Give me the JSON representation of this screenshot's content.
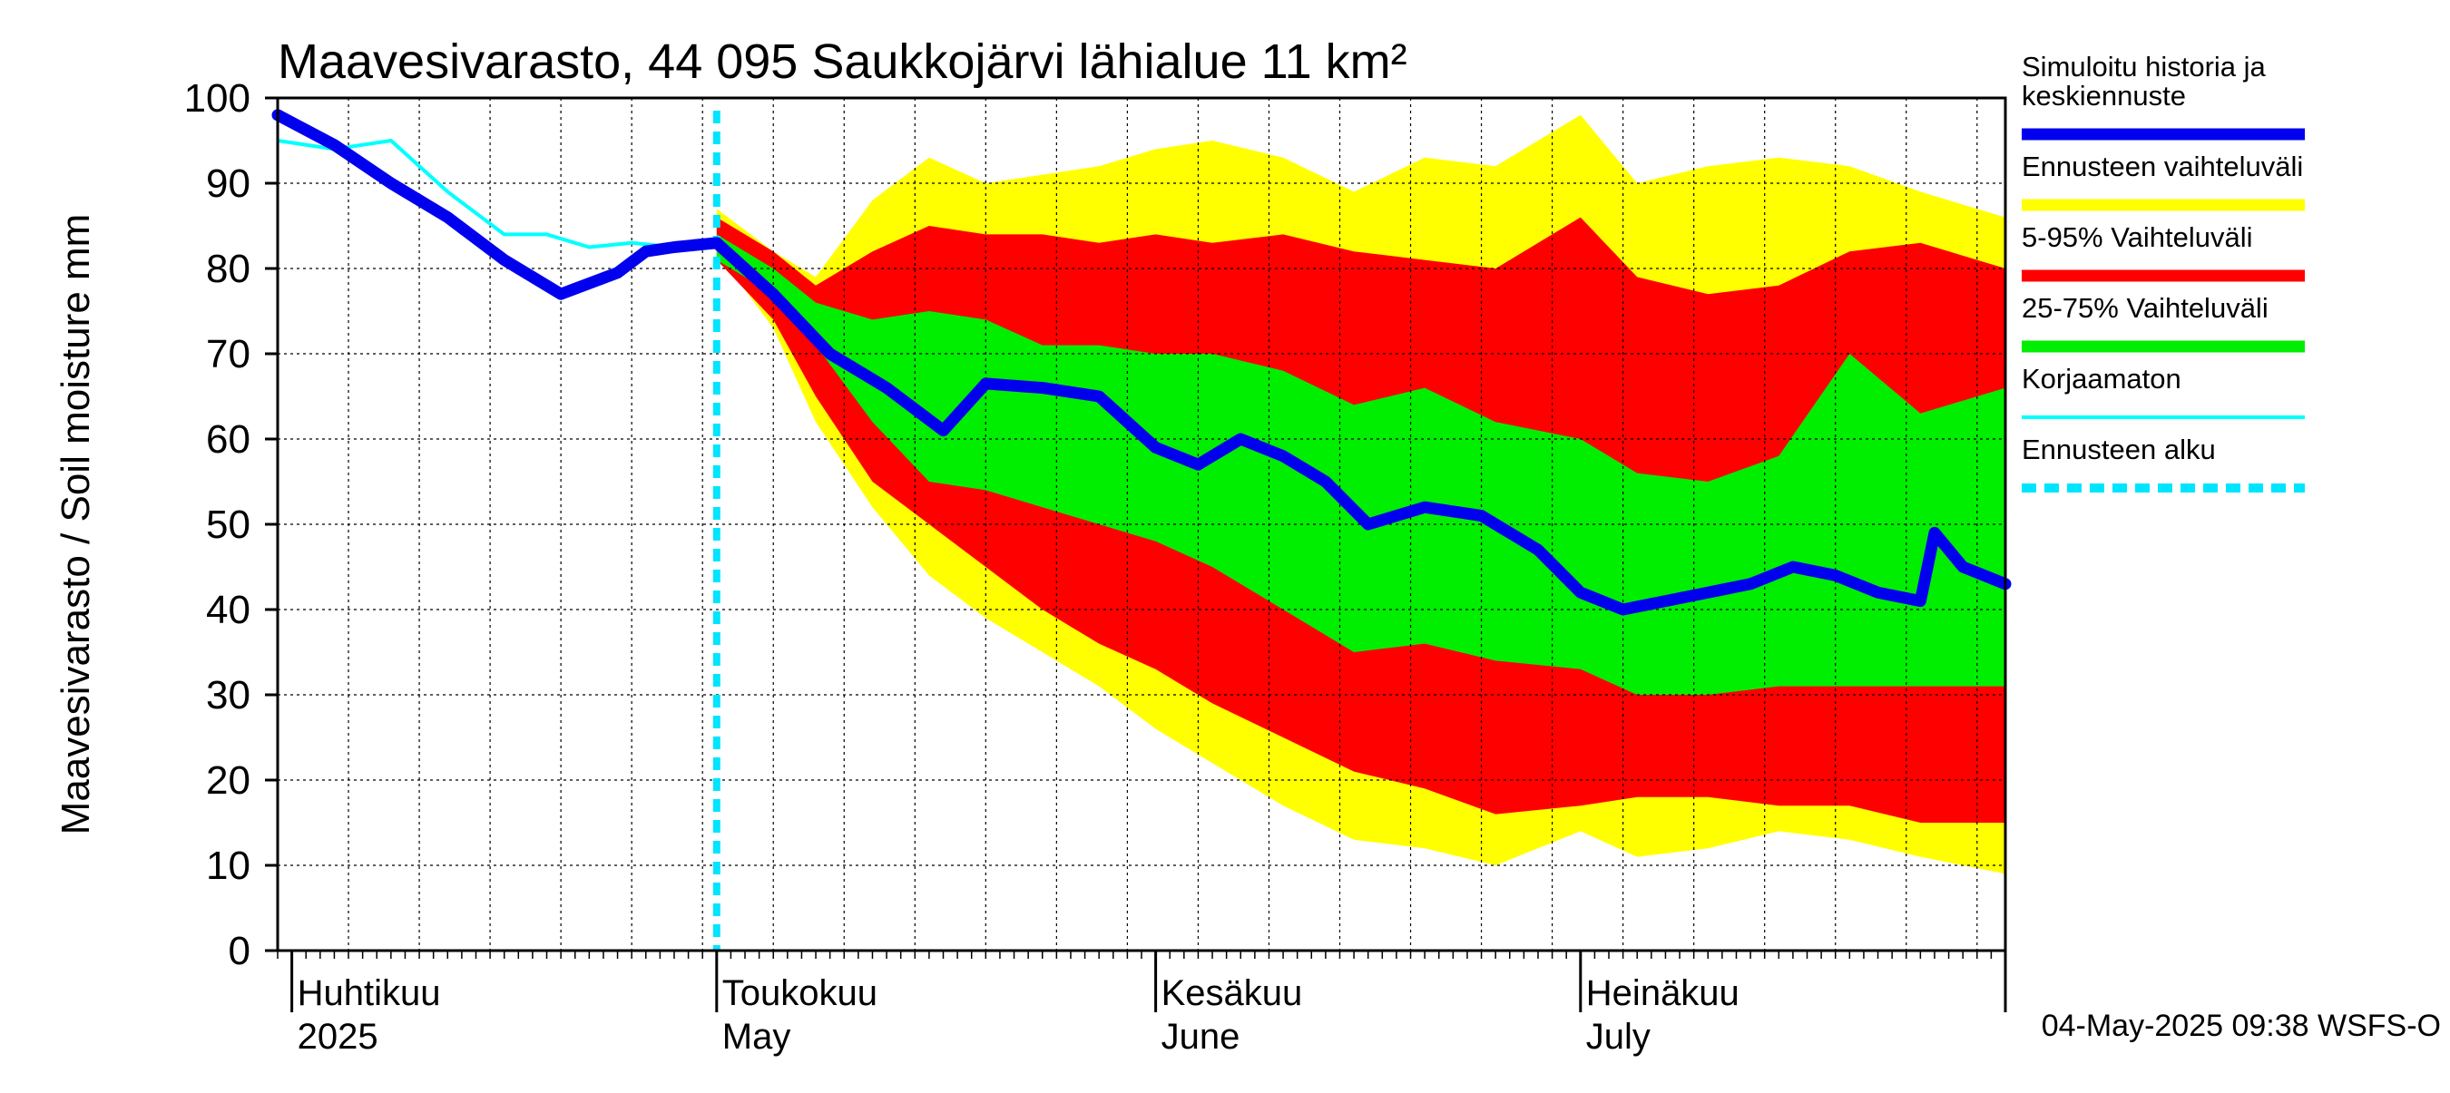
{
  "chart_data": {
    "type": "area",
    "title": "Maavesivarasto, 44 095 Saukkojärvi lähialue 11 km²",
    "ylabel": "Maavesivarasto / Soil moisture   mm",
    "xlabel": "",
    "ylim": [
      0,
      100
    ],
    "yticks": [
      0,
      10,
      20,
      30,
      40,
      50,
      60,
      70,
      80,
      90,
      100
    ],
    "xlim": [
      "2025-03-31",
      "2025-07-31"
    ],
    "grid": true,
    "legend_position": "right",
    "x_month_labels": [
      {
        "date": "2025-04-01",
        "fi": "Huhtikuu",
        "en": "2025"
      },
      {
        "date": "2025-05-01",
        "fi": "Toukokuu",
        "en": "May"
      },
      {
        "date": "2025-06-01",
        "fi": "Kesäkuu",
        "en": "June"
      },
      {
        "date": "2025-07-01",
        "fi": "Heinäkuu",
        "en": "July"
      }
    ],
    "forecast_start": "2025-05-01",
    "timestamp": "04-May-2025 09:38 WSFS-O",
    "legend": [
      {
        "label": "Simuloitu historia ja keskiennuste",
        "color": "#0000ee"
      },
      {
        "label": "Ennusteen vaihteluväli",
        "color": "#ffff00"
      },
      {
        "label": "5-95% Vaihteluväli",
        "color": "#ff0000"
      },
      {
        "label": "25-75% Vaihteluväli",
        "color": "#00ee00"
      },
      {
        "label": "Korjaamaton",
        "color": "#00ffff"
      },
      {
        "label": "Ennusteen alku",
        "color": "#00e5ff"
      }
    ],
    "colors": {
      "history": "#0000ee",
      "range_full": "#ffff00",
      "range_5_95": "#ff0000",
      "range_25_75": "#00ee00",
      "uncorrected": "#00ffff",
      "forecast_start": "#00e5ff"
    },
    "series": [
      {
        "name": "Simuloitu historia ja keskiennuste",
        "x": [
          "2025-03-31",
          "2025-04-04",
          "2025-04-08",
          "2025-04-12",
          "2025-04-16",
          "2025-04-20",
          "2025-04-24",
          "2025-04-26",
          "2025-04-28",
          "2025-05-01",
          "2025-05-05",
          "2025-05-09",
          "2025-05-13",
          "2025-05-17",
          "2025-05-20",
          "2025-05-24",
          "2025-05-28",
          "2025-06-01",
          "2025-06-04",
          "2025-06-07",
          "2025-06-10",
          "2025-06-13",
          "2025-06-16",
          "2025-06-20",
          "2025-06-24",
          "2025-06-28",
          "2025-07-01",
          "2025-07-04",
          "2025-07-07",
          "2025-07-10",
          "2025-07-13",
          "2025-07-16",
          "2025-07-19",
          "2025-07-22",
          "2025-07-25",
          "2025-07-26",
          "2025-07-28",
          "2025-07-31"
        ],
        "y": [
          98,
          94.5,
          90,
          86,
          81,
          77,
          79.5,
          82,
          82.5,
          83,
          77,
          70,
          66,
          61,
          66.5,
          66,
          65,
          59,
          57,
          60,
          58,
          55,
          50,
          52,
          51,
          47,
          42,
          40,
          41,
          42,
          43,
          45,
          44,
          42,
          41,
          49,
          45,
          43
        ]
      },
      {
        "name": "Korjaamaton",
        "x": [
          "2025-03-31",
          "2025-04-04",
          "2025-04-08",
          "2025-04-12",
          "2025-04-16",
          "2025-04-19",
          "2025-04-22",
          "2025-04-25",
          "2025-04-28",
          "2025-05-01"
        ],
        "y": [
          95,
          94,
          95,
          89,
          84,
          84,
          82.5,
          83,
          82.5,
          82.5
        ]
      },
      {
        "name": "Ennusteen vaihteluväli",
        "x": [
          "2025-05-01",
          "2025-05-05",
          "2025-05-08",
          "2025-05-12",
          "2025-05-16",
          "2025-05-20",
          "2025-05-24",
          "2025-05-28",
          "2025-06-01",
          "2025-06-05",
          "2025-06-10",
          "2025-06-15",
          "2025-06-20",
          "2025-06-25",
          "2025-07-01",
          "2025-07-05",
          "2025-07-10",
          "2025-07-15",
          "2025-07-20",
          "2025-07-25",
          "2025-07-31"
        ],
        "y_low": [
          82,
          73,
          62,
          52,
          44,
          39,
          35,
          31,
          26,
          22,
          17,
          13,
          12,
          10,
          14,
          11,
          12,
          14,
          13,
          11,
          9
        ],
        "y_high": [
          87,
          82,
          79,
          88,
          93,
          90,
          91,
          92,
          94,
          95,
          93,
          89,
          93,
          92,
          98,
          90,
          92,
          93,
          92,
          89,
          86
        ]
      },
      {
        "name": "5-95% Vaihteluväli",
        "x": [
          "2025-05-01",
          "2025-05-05",
          "2025-05-08",
          "2025-05-12",
          "2025-05-16",
          "2025-05-20",
          "2025-05-24",
          "2025-05-28",
          "2025-06-01",
          "2025-06-05",
          "2025-06-10",
          "2025-06-15",
          "2025-06-20",
          "2025-06-25",
          "2025-07-01",
          "2025-07-05",
          "2025-07-10",
          "2025-07-15",
          "2025-07-20",
          "2025-07-25",
          "2025-07-31"
        ],
        "y_low": [
          81,
          74,
          65,
          55,
          50,
          45,
          40,
          36,
          33,
          29,
          25,
          21,
          19,
          16,
          17,
          18,
          18,
          17,
          17,
          15,
          15
        ],
        "y_high": [
          86,
          82,
          78,
          82,
          85,
          84,
          84,
          83,
          84,
          83,
          84,
          82,
          81,
          80,
          86,
          79,
          77,
          78,
          82,
          83,
          80
        ]
      },
      {
        "name": "25-75% Vaihteluväli",
        "x": [
          "2025-05-01",
          "2025-05-05",
          "2025-05-08",
          "2025-05-12",
          "2025-05-16",
          "2025-05-20",
          "2025-05-24",
          "2025-05-28",
          "2025-06-01",
          "2025-06-05",
          "2025-06-10",
          "2025-06-15",
          "2025-06-20",
          "2025-06-25",
          "2025-07-01",
          "2025-07-05",
          "2025-07-10",
          "2025-07-15",
          "2025-07-20",
          "2025-07-25",
          "2025-07-31"
        ],
        "y_low": [
          81,
          77,
          71,
          62,
          55,
          54,
          52,
          50,
          48,
          45,
          40,
          35,
          36,
          34,
          33,
          30,
          30,
          31,
          31,
          31,
          31
        ],
        "y_high": [
          84,
          80,
          76,
          74,
          75,
          74,
          71,
          71,
          70,
          70,
          68,
          64,
          66,
          62,
          60,
          56,
          55,
          58,
          70,
          63,
          66
        ]
      }
    ]
  }
}
